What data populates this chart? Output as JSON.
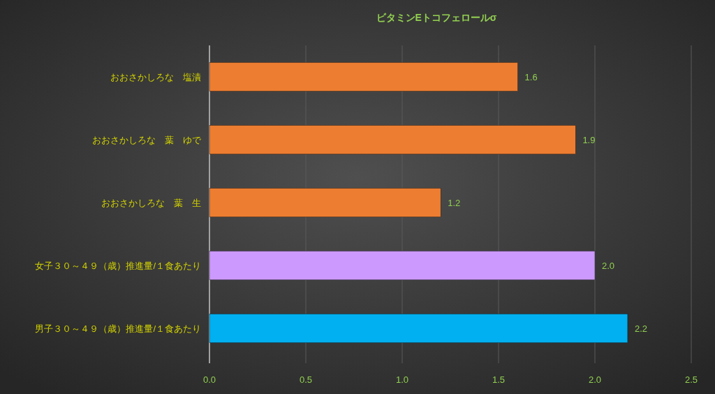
{
  "chart_data": {
    "type": "bar",
    "orientation": "horizontal",
    "title": "ビタミンEトコフェロールσ",
    "categories": [
      "おおさかしろな　塩漬",
      "おおさかしろな　葉　ゆで",
      "おおさかしろな　葉　生",
      "女子３０～４９（歳）推進量/１食あたり",
      "男子３０～４９（歳）推進量/１食あたり"
    ],
    "values": [
      1.6,
      1.9,
      1.2,
      2.0,
      2.17
    ],
    "colors": [
      "#ed7d31",
      "#ed7d31",
      "#ed7d31",
      "#cc99ff",
      "#00b0f0"
    ],
    "value_labels": [
      "1.6",
      "1.9",
      "1.2",
      "2.0",
      "2.2"
    ],
    "xlim": [
      0,
      2.5
    ],
    "xticks": [
      {
        "value": 0,
        "label": "0.0"
      },
      {
        "value": 0.5,
        "label": "0.5"
      },
      {
        "value": 1,
        "label": "1.0"
      },
      {
        "value": 1.5,
        "label": "1.5"
      },
      {
        "value": 2,
        "label": "2.0"
      },
      {
        "value": 2.5,
        "label": "2.5"
      }
    ],
    "grid": "x"
  }
}
